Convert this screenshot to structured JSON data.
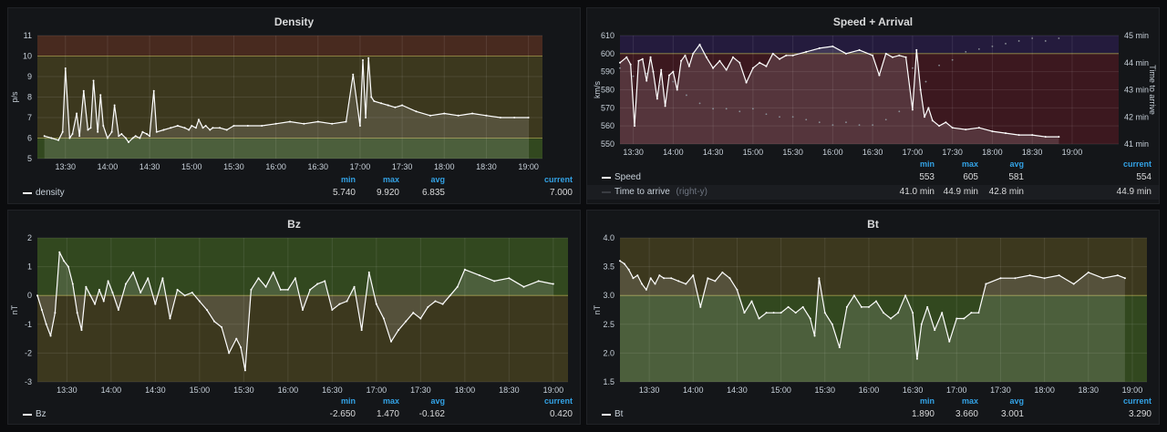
{
  "panels": [
    {
      "title": "Density",
      "legend": {
        "headers": [
          "min",
          "max",
          "avg",
          "current"
        ],
        "series": [
          {
            "name": "density",
            "suffix": "",
            "color": "#ffffff",
            "values": [
              "5.740",
              "9.920",
              "6.835",
              "7.000"
            ]
          }
        ]
      }
    },
    {
      "title": "Speed + Arrival",
      "legend": {
        "headers": [
          "min",
          "max",
          "avg",
          "current"
        ],
        "series": [
          {
            "name": "Speed",
            "suffix": "",
            "color": "#ffffff",
            "values": [
              "553",
              "605",
              "581",
              "554"
            ]
          },
          {
            "name": "Time to arrive",
            "suffix": "(right-y)",
            "color": "#3a3d42",
            "values": [
              "41.0 min",
              "44.9 min",
              "42.8 min",
              "44.9 min"
            ]
          }
        ]
      }
    },
    {
      "title": "Bz",
      "legend": {
        "headers": [
          "min",
          "max",
          "avg",
          "current"
        ],
        "series": [
          {
            "name": "Bz",
            "suffix": "",
            "color": "#ffffff",
            "values": [
              "-2.650",
              "1.470",
              "-0.162",
              "0.420"
            ]
          }
        ]
      }
    },
    {
      "title": "Bt",
      "legend": {
        "headers": [
          "min",
          "max",
          "avg",
          "current"
        ],
        "series": [
          {
            "name": "Bt",
            "suffix": "",
            "color": "#ffffff",
            "values": [
              "1.890",
              "3.660",
              "3.001",
              "3.290"
            ]
          }
        ]
      }
    }
  ],
  "chart_data": [
    {
      "type": "line",
      "title": "Density",
      "ylabel": "p/s",
      "ylim": [
        5,
        11
      ],
      "yticks": [
        5,
        6,
        7,
        8,
        9,
        10,
        11
      ],
      "xlim": [
        "13:10",
        "19:10"
      ],
      "xticks": [
        "13:30",
        "14:00",
        "14:30",
        "15:00",
        "15:30",
        "16:00",
        "16:30",
        "17:00",
        "17:30",
        "18:00",
        "18:30",
        "19:00"
      ],
      "grid": true,
      "fill": true,
      "thresholds": [
        {
          "from": 5,
          "to": 6,
          "color": "#3c5a22"
        },
        {
          "from": 6,
          "to": 10,
          "color": "#4a4420"
        },
        {
          "from": 10,
          "to": 11,
          "color": "#5a3222"
        }
      ],
      "series": [
        {
          "name": "density",
          "color": "#ffffff",
          "x": [
            "13:15",
            "13:20",
            "13:25",
            "13:28",
            "13:30",
            "13:33",
            "13:35",
            "13:38",
            "13:40",
            "13:43",
            "13:46",
            "13:48",
            "13:50",
            "13:53",
            "13:55",
            "13:57",
            "14:00",
            "14:03",
            "14:05",
            "14:08",
            "14:10",
            "14:13",
            "14:15",
            "14:18",
            "14:20",
            "14:23",
            "14:25",
            "14:28",
            "14:30",
            "14:33",
            "14:35",
            "14:40",
            "14:45",
            "14:50",
            "14:55",
            "14:58",
            "15:00",
            "15:03",
            "15:05",
            "15:08",
            "15:10",
            "15:13",
            "15:15",
            "15:20",
            "15:25",
            "15:30",
            "15:40",
            "15:50",
            "16:00",
            "16:10",
            "16:20",
            "16:30",
            "16:40",
            "16:50",
            "16:55",
            "17:00",
            "17:02",
            "17:04",
            "17:06",
            "17:08",
            "17:10",
            "17:15",
            "17:20",
            "17:25",
            "17:30",
            "17:40",
            "17:50",
            "18:00",
            "18:10",
            "18:20",
            "18:30",
            "18:40",
            "18:50",
            "19:00"
          ],
          "y": [
            6.1,
            6.0,
            5.9,
            6.3,
            9.4,
            6.0,
            6.2,
            7.2,
            6.1,
            8.3,
            6.4,
            6.5,
            8.8,
            6.3,
            8.1,
            6.6,
            6.0,
            6.3,
            7.6,
            6.1,
            6.2,
            6.0,
            5.8,
            6.0,
            6.1,
            6.0,
            6.3,
            6.2,
            6.1,
            8.3,
            6.3,
            6.4,
            6.5,
            6.6,
            6.5,
            6.4,
            6.6,
            6.5,
            6.9,
            6.5,
            6.6,
            6.4,
            6.5,
            6.5,
            6.4,
            6.6,
            6.6,
            6.6,
            6.7,
            6.8,
            6.7,
            6.8,
            6.7,
            6.8,
            9.1,
            6.6,
            9.8,
            7.0,
            9.9,
            8.0,
            7.8,
            7.7,
            7.6,
            7.5,
            7.6,
            7.3,
            7.1,
            7.2,
            7.1,
            7.2,
            7.1,
            7.0,
            7.0,
            7.0
          ]
        }
      ]
    },
    {
      "type": "line",
      "title": "Speed + Arrival",
      "ylabel": "km/s",
      "ylim": [
        550,
        610
      ],
      "yticks": [
        550,
        560,
        570,
        580,
        590,
        600,
        610
      ],
      "ylabel_right": "Time to arrive",
      "ylim_right": [
        41,
        45
      ],
      "yticks_right": [
        "41 min",
        "42 min",
        "43 min",
        "44 min",
        "45 min"
      ],
      "xlim": [
        "13:20",
        "19:35"
      ],
      "xticks": [
        "13:30",
        "14:00",
        "14:30",
        "15:00",
        "15:30",
        "16:00",
        "16:30",
        "17:00",
        "17:30",
        "18:00",
        "18:30",
        "19:00"
      ],
      "grid": true,
      "fill": true,
      "thresholds": [
        {
          "from": 550,
          "to": 600,
          "color": "#4a1a22"
        },
        {
          "from": 600,
          "to": 610,
          "color": "#2a1e4a"
        }
      ],
      "series": [
        {
          "name": "Speed",
          "axis": "left",
          "color": "#ffffff",
          "x": [
            "13:20",
            "13:25",
            "13:28",
            "13:31",
            "13:34",
            "13:37",
            "13:40",
            "13:43",
            "13:45",
            "13:48",
            "13:51",
            "13:54",
            "13:57",
            "14:00",
            "14:03",
            "14:06",
            "14:09",
            "14:12",
            "14:15",
            "14:20",
            "14:25",
            "14:30",
            "14:35",
            "14:40",
            "14:45",
            "14:50",
            "14:55",
            "15:00",
            "15:05",
            "15:10",
            "15:15",
            "15:20",
            "15:25",
            "15:30",
            "15:40",
            "15:50",
            "16:00",
            "16:10",
            "16:20",
            "16:30",
            "16:35",
            "16:40",
            "16:45",
            "16:50",
            "16:55",
            "17:00",
            "17:03",
            "17:06",
            "17:09",
            "17:12",
            "17:15",
            "17:20",
            "17:25",
            "17:30",
            "17:40",
            "17:50",
            "18:00",
            "18:10",
            "18:20",
            "18:30",
            "18:40",
            "18:50"
          ],
          "y": [
            595,
            598,
            594,
            560,
            596,
            597,
            585,
            598,
            590,
            575,
            591,
            571,
            588,
            590,
            580,
            596,
            599,
            593,
            600,
            605,
            598,
            592,
            596,
            591,
            598,
            595,
            584,
            592,
            595,
            593,
            600,
            597,
            599,
            599,
            601,
            603,
            604,
            600,
            602,
            599,
            588,
            600,
            598,
            599,
            598,
            569,
            602,
            580,
            565,
            570,
            563,
            560,
            562,
            559,
            558,
            559,
            557,
            556,
            555,
            555,
            554,
            554
          ]
        },
        {
          "name": "Time to arrive",
          "axis": "right",
          "color": "#8a8f96",
          "style": "points",
          "x": [
            "13:20",
            "13:30",
            "13:40",
            "13:50",
            "14:00",
            "14:10",
            "14:20",
            "14:30",
            "14:40",
            "14:50",
            "15:00",
            "15:10",
            "15:20",
            "15:30",
            "15:40",
            "15:50",
            "16:00",
            "16:10",
            "16:20",
            "16:30",
            "16:40",
            "16:50",
            "17:00",
            "17:10",
            "17:20",
            "17:30",
            "17:40",
            "17:50",
            "18:00",
            "18:10",
            "18:20",
            "18:30",
            "18:40",
            "18:50"
          ],
          "y": [
            43.8,
            43.5,
            43.6,
            43.2,
            43.3,
            42.8,
            42.5,
            42.3,
            42.3,
            42.2,
            42.3,
            42.1,
            42.0,
            42.0,
            41.9,
            41.8,
            41.7,
            41.8,
            41.7,
            41.7,
            41.9,
            42.2,
            43.8,
            43.3,
            43.9,
            44.1,
            44.4,
            44.5,
            44.6,
            44.7,
            44.8,
            44.9,
            44.8,
            44.9
          ]
        }
      ]
    },
    {
      "type": "line",
      "title": "Bz",
      "ylabel": "nT",
      "ylim": [
        -3,
        2
      ],
      "yticks": [
        -3,
        -2,
        -1,
        0,
        1,
        2
      ],
      "xlim": [
        "13:10",
        "19:10"
      ],
      "xticks": [
        "13:30",
        "14:00",
        "14:30",
        "15:00",
        "15:30",
        "16:00",
        "16:30",
        "17:00",
        "17:30",
        "18:00",
        "18:30",
        "19:00"
      ],
      "grid": true,
      "fill": true,
      "thresholds": [
        {
          "from": -3,
          "to": 0,
          "color": "#4a4420"
        },
        {
          "from": 0,
          "to": 2,
          "color": "#3c5a22"
        }
      ],
      "series": [
        {
          "name": "Bz",
          "color": "#ffffff",
          "x": [
            "13:10",
            "13:13",
            "13:16",
            "13:19",
            "13:22",
            "13:25",
            "13:28",
            "13:31",
            "13:34",
            "13:37",
            "13:40",
            "13:43",
            "13:46",
            "13:49",
            "13:52",
            "13:55",
            "13:58",
            "14:01",
            "14:05",
            "14:10",
            "14:15",
            "14:20",
            "14:25",
            "14:30",
            "14:35",
            "14:40",
            "14:45",
            "14:50",
            "14:55",
            "15:00",
            "15:05",
            "15:10",
            "15:15",
            "15:20",
            "15:25",
            "15:28",
            "15:31",
            "15:35",
            "15:40",
            "15:45",
            "15:50",
            "15:55",
            "16:00",
            "16:05",
            "16:10",
            "16:15",
            "16:20",
            "16:25",
            "16:30",
            "16:35",
            "16:40",
            "16:45",
            "16:50",
            "16:55",
            "17:00",
            "17:05",
            "17:10",
            "17:15",
            "17:20",
            "17:25",
            "17:30",
            "17:35",
            "17:40",
            "17:45",
            "17:50",
            "17:55",
            "18:00",
            "18:10",
            "18:20",
            "18:30",
            "18:40",
            "18:50",
            "19:00"
          ],
          "y": [
            0.0,
            -0.5,
            -1.0,
            -1.4,
            -0.6,
            1.5,
            1.2,
            1.0,
            0.4,
            -0.6,
            -1.2,
            0.3,
            0.0,
            -0.3,
            0.2,
            -0.2,
            0.5,
            0.1,
            -0.5,
            0.4,
            0.8,
            0.1,
            0.6,
            -0.3,
            0.6,
            -0.8,
            0.2,
            0.0,
            0.1,
            -0.2,
            -0.5,
            -0.9,
            -1.1,
            -2.0,
            -1.5,
            -1.8,
            -2.6,
            0.2,
            0.6,
            0.3,
            0.8,
            0.2,
            0.2,
            0.6,
            -0.5,
            0.2,
            0.4,
            0.5,
            -0.5,
            -0.3,
            -0.2,
            0.3,
            -1.2,
            0.8,
            -0.3,
            -0.8,
            -1.6,
            -1.2,
            -0.9,
            -0.6,
            -0.8,
            -0.4,
            -0.2,
            -0.3,
            0.0,
            0.3,
            0.9,
            0.7,
            0.5,
            0.6,
            0.3,
            0.5,
            0.4
          ]
        }
      ]
    },
    {
      "type": "line",
      "title": "Bt",
      "ylabel": "nT",
      "ylim": [
        1.5,
        4.0
      ],
      "yticks": [
        1.5,
        2.0,
        2.5,
        3.0,
        3.5,
        4.0
      ],
      "xlim": [
        "13:10",
        "19:10"
      ],
      "xticks": [
        "13:30",
        "14:00",
        "14:30",
        "15:00",
        "15:30",
        "16:00",
        "16:30",
        "17:00",
        "17:30",
        "18:00",
        "18:30",
        "19:00"
      ],
      "grid": true,
      "fill": true,
      "thresholds": [
        {
          "from": 1.5,
          "to": 3.0,
          "color": "#3c5a22"
        },
        {
          "from": 3.0,
          "to": 4.0,
          "color": "#4a4420"
        }
      ],
      "series": [
        {
          "name": "Bt",
          "color": "#ffffff",
          "x": [
            "13:10",
            "13:13",
            "13:16",
            "13:19",
            "13:22",
            "13:25",
            "13:28",
            "13:31",
            "13:34",
            "13:37",
            "13:40",
            "13:45",
            "13:50",
            "13:55",
            "14:00",
            "14:05",
            "14:10",
            "14:15",
            "14:20",
            "14:25",
            "14:30",
            "14:35",
            "14:40",
            "14:45",
            "14:50",
            "14:55",
            "15:00",
            "15:05",
            "15:10",
            "15:15",
            "15:20",
            "15:23",
            "15:26",
            "15:30",
            "15:35",
            "15:40",
            "15:45",
            "15:50",
            "15:55",
            "16:00",
            "16:05",
            "16:10",
            "16:15",
            "16:20",
            "16:25",
            "16:30",
            "16:33",
            "16:36",
            "16:40",
            "16:45",
            "16:50",
            "16:55",
            "17:00",
            "17:05",
            "17:10",
            "17:15",
            "17:20",
            "17:30",
            "17:40",
            "17:50",
            "18:00",
            "18:10",
            "18:20",
            "18:30",
            "18:40",
            "18:50",
            "18:55"
          ],
          "y": [
            3.6,
            3.55,
            3.45,
            3.3,
            3.35,
            3.2,
            3.1,
            3.3,
            3.2,
            3.35,
            3.3,
            3.3,
            3.25,
            3.2,
            3.35,
            2.8,
            3.3,
            3.25,
            3.4,
            3.3,
            3.1,
            2.7,
            2.9,
            2.6,
            2.7,
            2.7,
            2.7,
            2.8,
            2.7,
            2.8,
            2.6,
            2.3,
            3.3,
            2.7,
            2.5,
            2.1,
            2.8,
            3.0,
            2.8,
            2.8,
            2.9,
            2.7,
            2.6,
            2.7,
            3.0,
            2.7,
            1.9,
            2.5,
            2.8,
            2.4,
            2.7,
            2.2,
            2.6,
            2.6,
            2.7,
            2.7,
            3.2,
            3.3,
            3.3,
            3.35,
            3.3,
            3.35,
            3.2,
            3.4,
            3.3,
            3.35,
            3.3
          ]
        }
      ]
    }
  ]
}
